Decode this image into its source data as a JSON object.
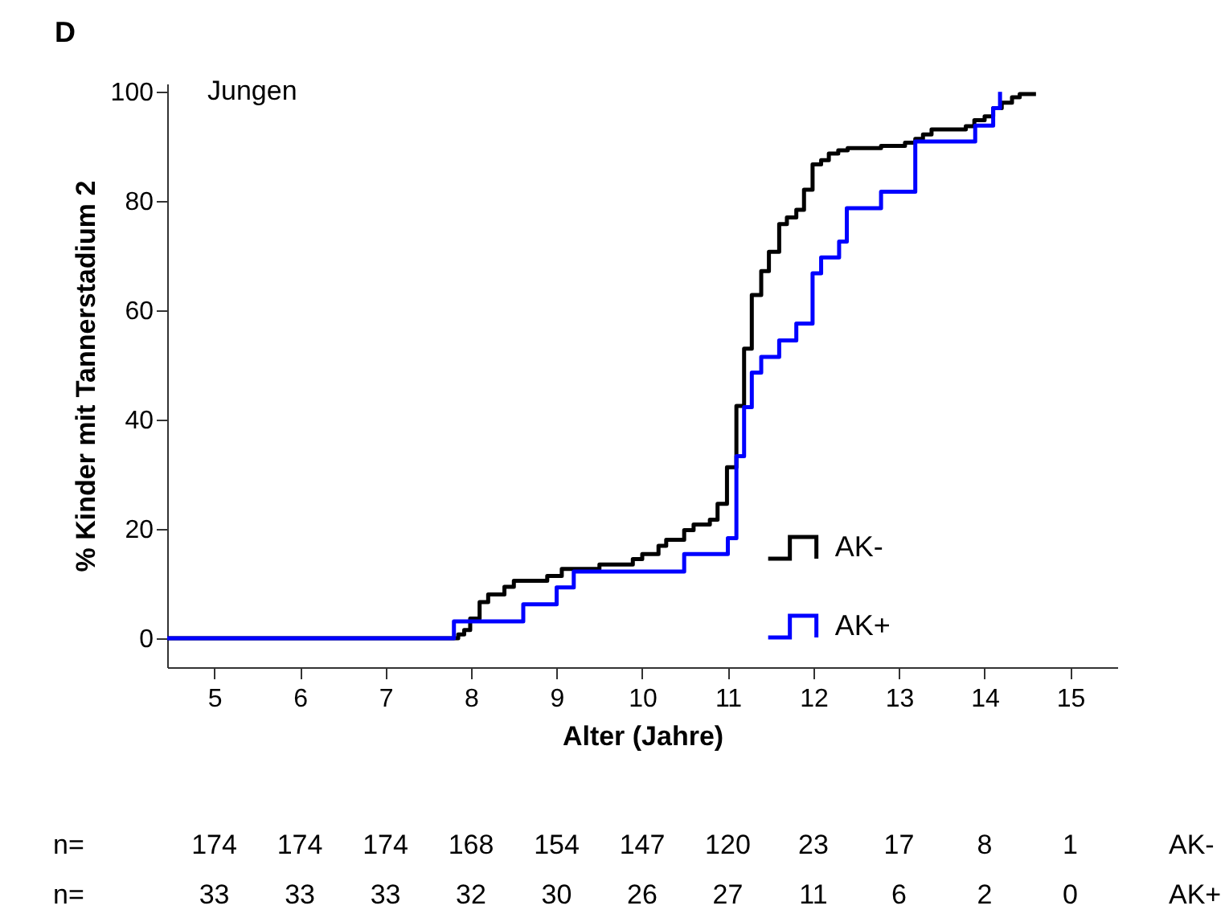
{
  "chart_data": {
    "type": "step",
    "title": "D",
    "xlabel": "Alter (Jahre)",
    "ylabel": "% Kinder mit Tannerstadium 2",
    "annotations": [
      "Jungen",
      "n= 174 174 174 168 154 147 120 23 17 8 1 AK-",
      "n= 33 33 33 32 30 26 27 11 6 2 0 AK+"
    ],
    "xlim": [
      4.45,
      15.55
    ],
    "ylim": [
      -5.3,
      101.5
    ],
    "xticks": [
      5,
      6,
      7,
      8,
      9,
      10,
      11,
      12,
      13,
      14,
      15
    ],
    "yticks": [
      0,
      20,
      40,
      60,
      80,
      100
    ],
    "grid": false,
    "legend": "bottom right",
    "line_style": "solid",
    "marker": "none",
    "series": [
      {
        "name": "AK-",
        "color": "#000000",
        "x": [
          4.45,
          7.85,
          7.92,
          7.99,
          8.1,
          8.2,
          8.39,
          8.5,
          8.89,
          9.06,
          9.5,
          9.89,
          10.0,
          10.19,
          10.28,
          10.49,
          10.6,
          10.79,
          10.88,
          10.99,
          11.1,
          11.19,
          11.28,
          11.39,
          11.48,
          11.6,
          11.69,
          11.8,
          11.89,
          11.99,
          12.09,
          12.18,
          12.29,
          12.4,
          12.79,
          13.07,
          13.19,
          13.28,
          13.38,
          13.78,
          13.88,
          14.0,
          14.1,
          14.2,
          14.32,
          14.41,
          14.6
        ],
        "values": [
          0,
          0.7,
          1.5,
          3.6,
          6.6,
          8.0,
          9.4,
          10.5,
          11.4,
          12.7,
          13.5,
          14.5,
          15.4,
          16.9,
          18.0,
          19.8,
          20.8,
          21.7,
          24.6,
          31.3,
          42.5,
          53.0,
          62.8,
          67.2,
          70.7,
          75.8,
          77.0,
          78.4,
          82.1,
          86.7,
          87.5,
          88.7,
          89.3,
          89.7,
          90.1,
          90.7,
          91.4,
          92.2,
          93.1,
          93.7,
          94.8,
          95.5,
          97.0,
          98.0,
          99.0,
          99.6,
          99.6
        ]
      },
      {
        "name": "AK+",
        "color": "#0000ff",
        "x": [
          4.45,
          7.8,
          8.61,
          9.0,
          9.2,
          10.49,
          11.0,
          11.1,
          11.19,
          11.28,
          11.39,
          11.6,
          11.8,
          11.99,
          12.09,
          12.3,
          12.39,
          12.79,
          13.19,
          13.89,
          14.1,
          14.18
        ],
        "values": [
          0,
          3.1,
          6.2,
          9.3,
          12.2,
          15.4,
          18.3,
          33.3,
          42.3,
          48.6,
          51.5,
          54.5,
          57.6,
          66.8,
          69.7,
          72.6,
          78.7,
          81.7,
          90.9,
          93.8,
          97.0,
          100
        ]
      }
    ]
  }
}
